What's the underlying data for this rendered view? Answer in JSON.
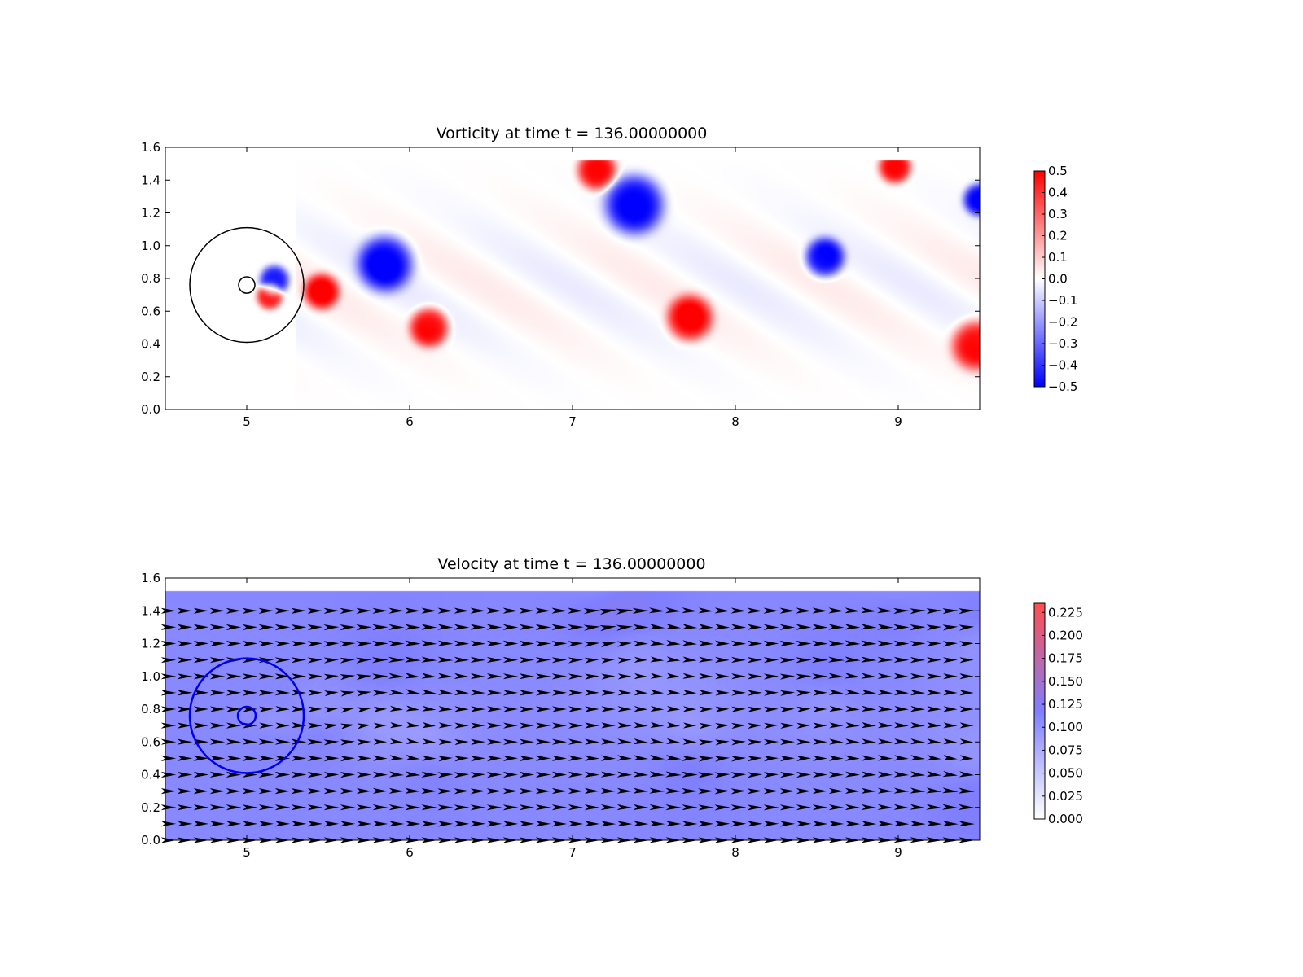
{
  "chart_data": [
    {
      "type": "heatmap",
      "title": "Vorticity at time t =   136.00000000",
      "xlabel": "",
      "ylabel": "",
      "xlim": [
        4.5,
        9.5
      ],
      "ylim": [
        0.0,
        1.6
      ],
      "domain_top": 1.52,
      "xticks": [
        "5",
        "6",
        "7",
        "8",
        "9"
      ],
      "yticks": [
        "0.0",
        "0.2",
        "0.4",
        "0.6",
        "0.8",
        "1.0",
        "1.2",
        "1.4",
        "1.6"
      ],
      "colormap": "bwr",
      "colors": {
        "low": "#0000ff",
        "mid": "#ffffff",
        "high": "#ff0000"
      },
      "colorbar_range": [
        -0.5,
        0.5
      ],
      "colorbar_ticks": [
        "0.5",
        "0.4",
        "0.3",
        "0.2",
        "0.1",
        "0.0",
        "−0.1",
        "−0.2",
        "−0.3",
        "−0.4",
        "−0.5"
      ],
      "vortices": [
        {
          "x": 5.85,
          "y": 0.89,
          "strength": -1.0,
          "radius": 0.17
        },
        {
          "x": 5.46,
          "y": 0.72,
          "strength": 1.0,
          "radius": 0.11
        },
        {
          "x": 5.17,
          "y": 0.79,
          "strength": -0.9,
          "radius": 0.09
        },
        {
          "x": 5.14,
          "y": 0.69,
          "strength": 0.9,
          "radius": 0.08
        },
        {
          "x": 6.12,
          "y": 0.5,
          "strength": 1.0,
          "radius": 0.12
        },
        {
          "x": 7.38,
          "y": 1.25,
          "strength": -1.0,
          "radius": 0.18
        },
        {
          "x": 7.15,
          "y": 1.46,
          "strength": 1.0,
          "radius": 0.12
        },
        {
          "x": 7.72,
          "y": 0.56,
          "strength": 1.0,
          "radius": 0.14
        },
        {
          "x": 8.55,
          "y": 0.93,
          "strength": -1.0,
          "radius": 0.12
        },
        {
          "x": 8.98,
          "y": 1.48,
          "strength": 1.0,
          "radius": 0.1
        },
        {
          "x": 9.5,
          "y": 1.28,
          "strength": -1.0,
          "radius": 0.1
        },
        {
          "x": 9.48,
          "y": 0.39,
          "strength": 1.0,
          "radius": 0.15
        }
      ],
      "circles": [
        {
          "x": 5.0,
          "y": 0.76,
          "r": 0.35,
          "color": "#000000"
        },
        {
          "x": 5.0,
          "y": 0.76,
          "r": 0.05,
          "color": "#000000"
        }
      ]
    },
    {
      "type": "heatmap",
      "title": "Velocity at time t =   136.00000000",
      "xlabel": "",
      "ylabel": "",
      "xlim": [
        4.5,
        9.5
      ],
      "ylim": [
        0.0,
        1.6
      ],
      "domain_top": 1.52,
      "xticks": [
        "5",
        "6",
        "7",
        "8",
        "9"
      ],
      "yticks": [
        "0.0",
        "0.2",
        "0.4",
        "0.6",
        "0.8",
        "1.0",
        "1.2",
        "1.4",
        "1.6"
      ],
      "colormap": "bwr",
      "colors": {
        "low": "#ffffff",
        "mid": "#7f7fff",
        "high": "#ff4f4f"
      },
      "colorbar_range": [
        0.0,
        0.235
      ],
      "colorbar_ticks": [
        "0.225",
        "0.200",
        "0.175",
        "0.150",
        "0.125",
        "0.100",
        "0.075",
        "0.050",
        "0.025",
        "0.000"
      ],
      "quiver": {
        "color": "#000000",
        "grid_dx": 0.1,
        "grid_dy": 0.1
      },
      "circles": [
        {
          "x": 5.0,
          "y": 0.76,
          "r": 0.35,
          "color": "#0000ee"
        },
        {
          "x": 5.0,
          "y": 0.76,
          "r": 0.055,
          "color": "#0000ee"
        }
      ]
    }
  ]
}
